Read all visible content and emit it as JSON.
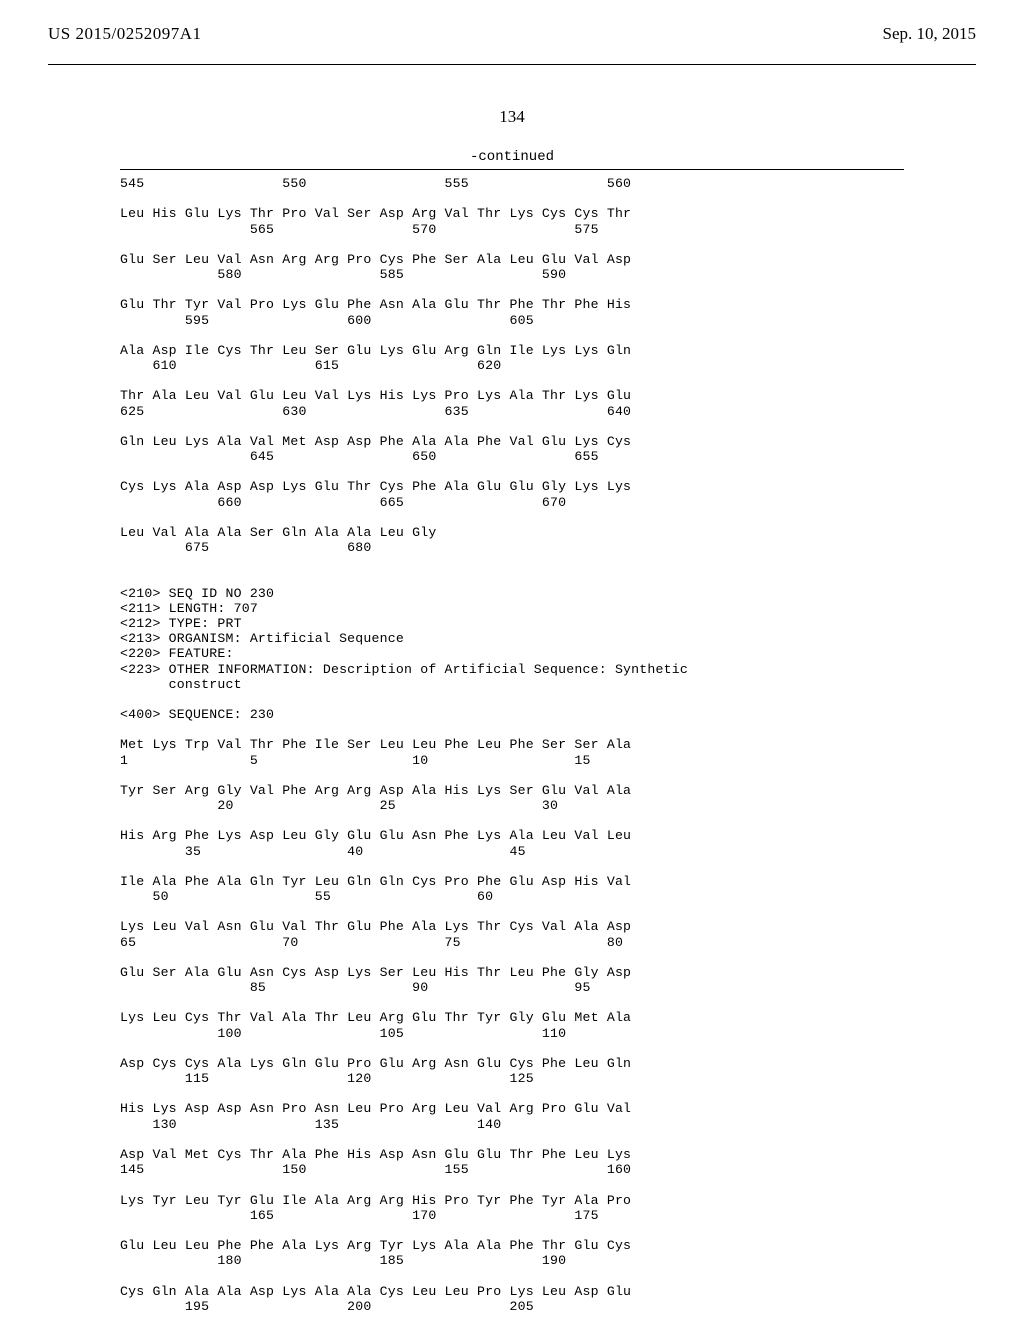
{
  "header": {
    "left": "US 2015/0252097A1",
    "right": "Sep. 10, 2015"
  },
  "page_number": "134",
  "continued_label": "-continued",
  "sequence_text": "545                 550                 555                 560\n\nLeu His Glu Lys Thr Pro Val Ser Asp Arg Val Thr Lys Cys Cys Thr\n                565                 570                 575\n\nGlu Ser Leu Val Asn Arg Arg Pro Cys Phe Ser Ala Leu Glu Val Asp\n            580                 585                 590\n\nGlu Thr Tyr Val Pro Lys Glu Phe Asn Ala Glu Thr Phe Thr Phe His\n        595                 600                 605\n\nAla Asp Ile Cys Thr Leu Ser Glu Lys Glu Arg Gln Ile Lys Lys Gln\n    610                 615                 620\n\nThr Ala Leu Val Glu Leu Val Lys His Lys Pro Lys Ala Thr Lys Glu\n625                 630                 635                 640\n\nGln Leu Lys Ala Val Met Asp Asp Phe Ala Ala Phe Val Glu Lys Cys\n                645                 650                 655\n\nCys Lys Ala Asp Asp Lys Glu Thr Cys Phe Ala Glu Glu Gly Lys Lys\n            660                 665                 670\n\nLeu Val Ala Ala Ser Gln Ala Ala Leu Gly\n        675                 680\n\n\n<210> SEQ ID NO 230\n<211> LENGTH: 707\n<212> TYPE: PRT\n<213> ORGANISM: Artificial Sequence\n<220> FEATURE:\n<223> OTHER INFORMATION: Description of Artificial Sequence: Synthetic\n      construct\n\n<400> SEQUENCE: 230\n\nMet Lys Trp Val Thr Phe Ile Ser Leu Leu Phe Leu Phe Ser Ser Ala\n1               5                   10                  15\n\nTyr Ser Arg Gly Val Phe Arg Arg Asp Ala His Lys Ser Glu Val Ala\n            20                  25                  30\n\nHis Arg Phe Lys Asp Leu Gly Glu Glu Asn Phe Lys Ala Leu Val Leu\n        35                  40                  45\n\nIle Ala Phe Ala Gln Tyr Leu Gln Gln Cys Pro Phe Glu Asp His Val\n    50                  55                  60\n\nLys Leu Val Asn Glu Val Thr Glu Phe Ala Lys Thr Cys Val Ala Asp\n65                  70                  75                  80\n\nGlu Ser Ala Glu Asn Cys Asp Lys Ser Leu His Thr Leu Phe Gly Asp\n                85                  90                  95\n\nLys Leu Cys Thr Val Ala Thr Leu Arg Glu Thr Tyr Gly Glu Met Ala\n            100                 105                 110\n\nAsp Cys Cys Ala Lys Gln Glu Pro Glu Arg Asn Glu Cys Phe Leu Gln\n        115                 120                 125\n\nHis Lys Asp Asp Asn Pro Asn Leu Pro Arg Leu Val Arg Pro Glu Val\n    130                 135                 140\n\nAsp Val Met Cys Thr Ala Phe His Asp Asn Glu Glu Thr Phe Leu Lys\n145                 150                 155                 160\n\nLys Tyr Leu Tyr Glu Ile Ala Arg Arg His Pro Tyr Phe Tyr Ala Pro\n                165                 170                 175\n\nGlu Leu Leu Phe Phe Ala Lys Arg Tyr Lys Ala Ala Phe Thr Glu Cys\n            180                 185                 190\n\nCys Gln Ala Ala Asp Lys Ala Ala Cys Leu Leu Pro Lys Leu Asp Glu\n        195                 200                 205"
}
